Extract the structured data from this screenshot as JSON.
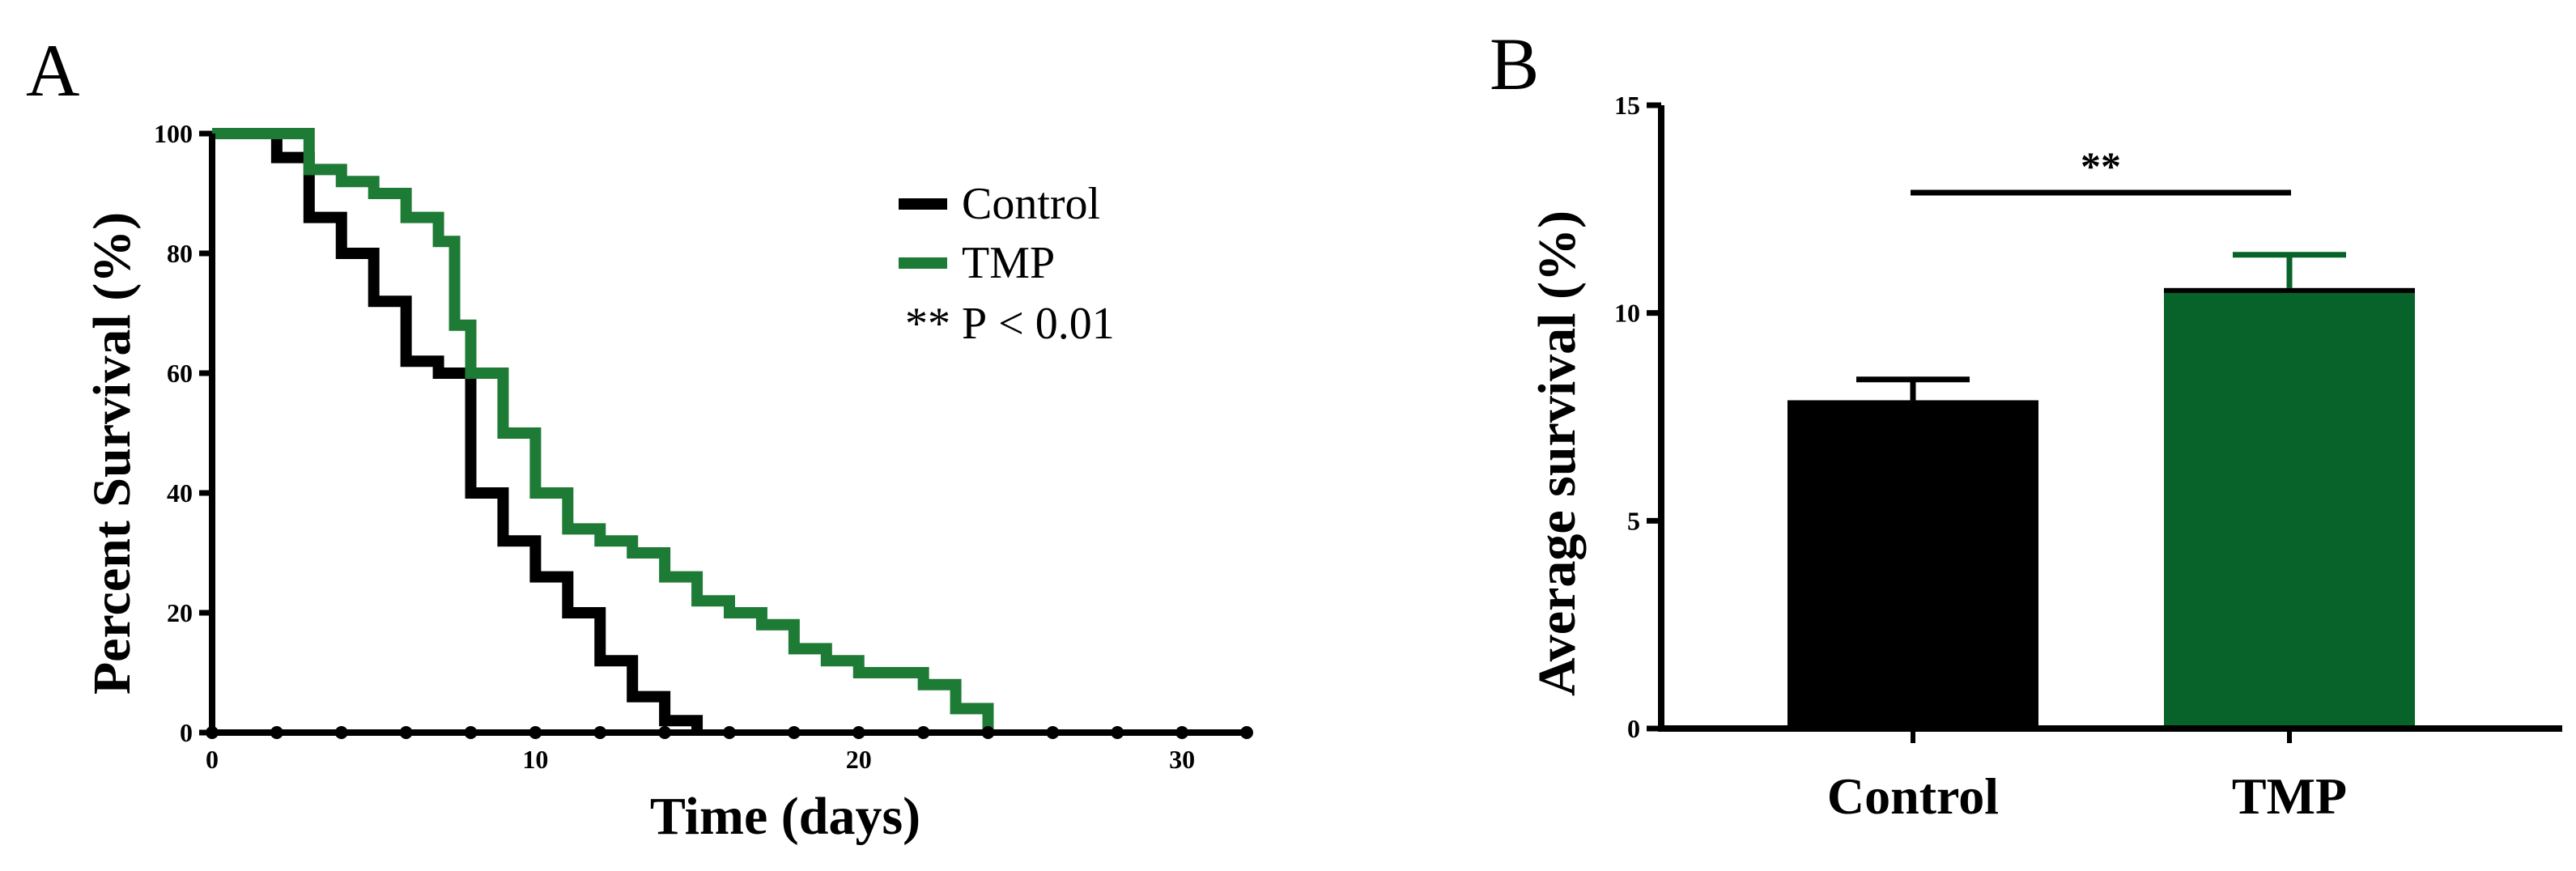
{
  "chart_data": [
    {
      "panel": "A",
      "type": "line",
      "style": "step",
      "xlabel": "Time (days)",
      "ylabel": "Percent  Survival (%)",
      "xlim": [
        0,
        32
      ],
      "ylim": [
        0,
        100
      ],
      "xticks": [
        0,
        10,
        20,
        30
      ],
      "yticks": [
        0,
        20,
        40,
        60,
        80,
        100
      ],
      "legend_position": "top-right",
      "annotation": {
        "stars": "**",
        "text": "P < 0.01"
      },
      "series": [
        {
          "name": "Control",
          "color": "#000000",
          "x": [
            0,
            2,
            3,
            4,
            5,
            6,
            7,
            8,
            9,
            10,
            11,
            12,
            13,
            14,
            15
          ],
          "y": [
            100,
            96,
            86,
            80,
            72,
            62,
            60,
            40,
            32,
            26,
            20,
            12,
            6,
            2,
            0
          ]
        },
        {
          "name": "TMP",
          "color": "#1e7b35",
          "x": [
            0,
            3,
            4,
            5,
            6,
            7,
            7.5,
            8,
            9,
            10,
            11,
            12,
            13,
            14,
            15,
            16,
            17,
            18,
            19,
            20,
            21,
            22,
            23,
            24
          ],
          "y": [
            100,
            94,
            92,
            90,
            86,
            82,
            68,
            60,
            50,
            40,
            34,
            32,
            30,
            26,
            22,
            20,
            18,
            14,
            12,
            10,
            10,
            8,
            4,
            0
          ]
        }
      ]
    },
    {
      "panel": "B",
      "type": "bar",
      "ylabel": "Average survival (%)",
      "categories": [
        "Control",
        "TMP"
      ],
      "values": [
        7.9,
        10.6
      ],
      "errors": [
        0.5,
        0.8
      ],
      "colors": [
        "#000000",
        "#07632a"
      ],
      "ylim": [
        0,
        15
      ],
      "yticks": [
        0,
        5,
        10,
        15
      ],
      "significance": "**"
    }
  ]
}
